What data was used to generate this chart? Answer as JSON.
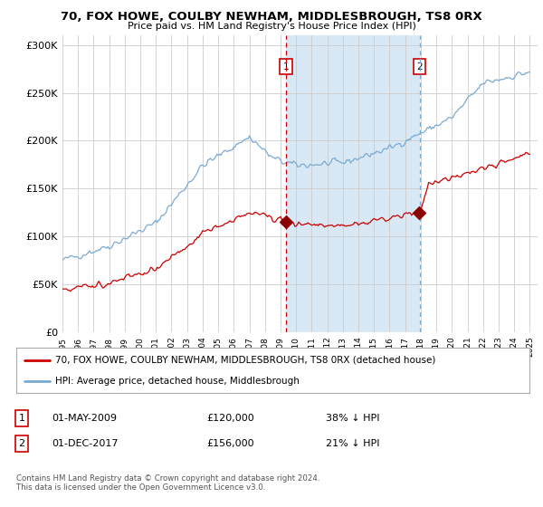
{
  "title": "70, FOX HOWE, COULBY NEWHAM, MIDDLESBROUGH, TS8 0RX",
  "subtitle": "Price paid vs. HM Land Registry's House Price Index (HPI)",
  "ylabel_ticks": [
    "£0",
    "£50K",
    "£100K",
    "£150K",
    "£200K",
    "£250K",
    "£300K"
  ],
  "ytick_values": [
    0,
    50000,
    100000,
    150000,
    200000,
    250000,
    300000
  ],
  "ylim": [
    0,
    310000
  ],
  "xlim_start": 1995.0,
  "xlim_end": 2025.5,
  "hpi_color": "#7aaad4",
  "price_color": "#cc0000",
  "shade_color": "#d8e8f5",
  "marker1_date": 2009.33,
  "marker2_date": 2017.92,
  "marker1_price": 120000,
  "marker2_price": 156000,
  "annotation1": "01-MAY-2009",
  "annotation1_price": "£120,000",
  "annotation1_pct": "38% ↓ HPI",
  "annotation2": "01-DEC-2017",
  "annotation2_price": "£156,000",
  "annotation2_pct": "21% ↓ HPI",
  "legend_property_label": "70, FOX HOWE, COULBY NEWHAM, MIDDLESBROUGH, TS8 0RX (detached house)",
  "legend_hpi_label": "HPI: Average price, detached house, Middlesbrough",
  "footnote": "Contains HM Land Registry data © Crown copyright and database right 2024.\nThis data is licensed under the Open Government Licence v3.0.",
  "fig_bg_color": "#ffffff"
}
